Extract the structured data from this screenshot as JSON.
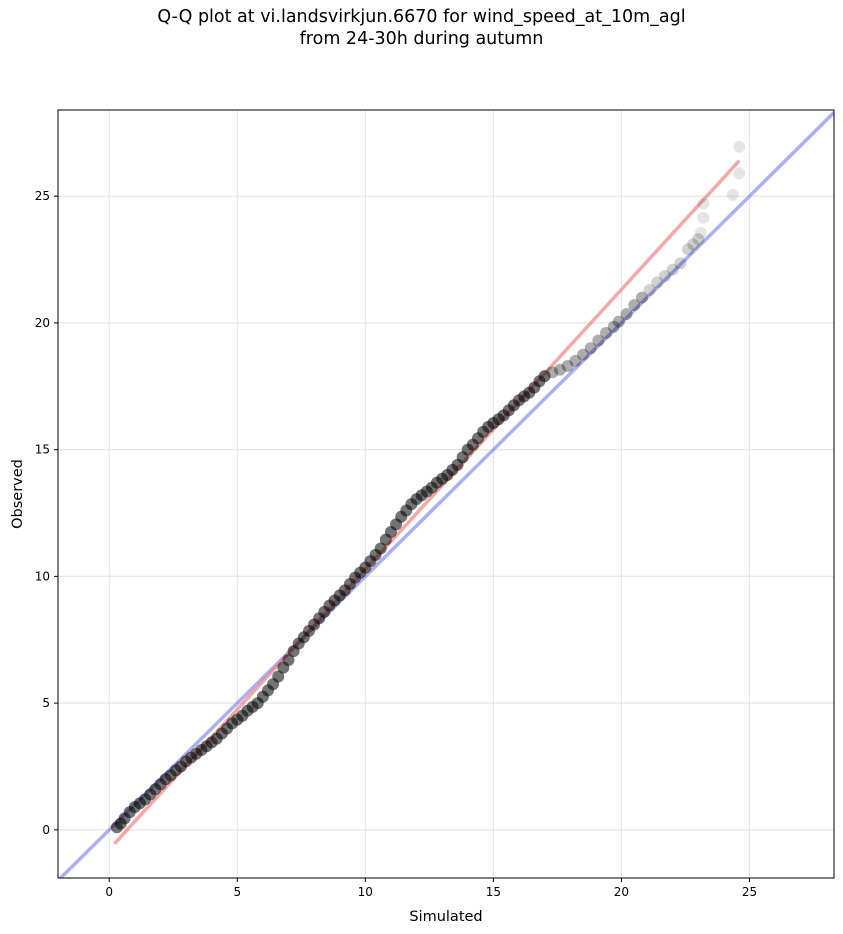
{
  "chart_data": {
    "type": "scatter",
    "title_lines": [
      "Q-Q plot at vi.landsvirkjun.6670 for wind_speed_at_10m_agl",
      "from 24-30h during autumn"
    ],
    "xlabel": "Simulated",
    "ylabel": "Observed",
    "xlim": [
      -2.0,
      28.3
    ],
    "ylim": [
      -1.9,
      28.4
    ],
    "xticks": [
      0,
      5,
      10,
      15,
      20,
      25
    ],
    "yticks": [
      0,
      5,
      10,
      15,
      20,
      25
    ],
    "grid": true,
    "colors": {
      "points": "#000000",
      "identity_line": "#6670e6",
      "fit_line": "#ee6e6e",
      "grid": "#e6e6e6"
    },
    "identity_line": {
      "name": "1:1 line",
      "from": [
        -2.0,
        -2.0
      ],
      "to": [
        28.3,
        28.3
      ]
    },
    "fit_line": {
      "from": [
        0.2,
        -0.55
      ],
      "to": [
        24.6,
        26.4
      ]
    },
    "series": [
      {
        "name": "quantiles",
        "points": [
          [
            0.3,
            0.1
          ],
          [
            0.45,
            0.25
          ],
          [
            0.6,
            0.45
          ],
          [
            0.8,
            0.7
          ],
          [
            1.0,
            0.9
          ],
          [
            1.2,
            1.05
          ],
          [
            1.4,
            1.2
          ],
          [
            1.6,
            1.4
          ],
          [
            1.8,
            1.6
          ],
          [
            2.0,
            1.8
          ],
          [
            2.2,
            2.0
          ],
          [
            2.4,
            2.15
          ],
          [
            2.6,
            2.35
          ],
          [
            2.8,
            2.5
          ],
          [
            3.0,
            2.7
          ],
          [
            3.2,
            2.85
          ],
          [
            3.4,
            3.0
          ],
          [
            3.6,
            3.15
          ],
          [
            3.8,
            3.3
          ],
          [
            4.0,
            3.45
          ],
          [
            4.2,
            3.6
          ],
          [
            4.4,
            3.8
          ],
          [
            4.6,
            4.0
          ],
          [
            4.8,
            4.2
          ],
          [
            5.0,
            4.35
          ],
          [
            5.2,
            4.5
          ],
          [
            5.4,
            4.7
          ],
          [
            5.6,
            4.85
          ],
          [
            5.8,
            5.0
          ],
          [
            6.0,
            5.25
          ],
          [
            6.2,
            5.5
          ],
          [
            6.4,
            5.75
          ],
          [
            6.6,
            6.05
          ],
          [
            6.8,
            6.4
          ],
          [
            7.0,
            6.7
          ],
          [
            7.2,
            7.05
          ],
          [
            7.4,
            7.35
          ],
          [
            7.6,
            7.6
          ],
          [
            7.8,
            7.85
          ],
          [
            8.0,
            8.1
          ],
          [
            8.2,
            8.35
          ],
          [
            8.4,
            8.6
          ],
          [
            8.6,
            8.85
          ],
          [
            8.8,
            9.05
          ],
          [
            9.0,
            9.25
          ],
          [
            9.2,
            9.45
          ],
          [
            9.4,
            9.7
          ],
          [
            9.6,
            9.95
          ],
          [
            9.8,
            10.15
          ],
          [
            10.0,
            10.35
          ],
          [
            10.2,
            10.6
          ],
          [
            10.4,
            10.85
          ],
          [
            10.6,
            11.1
          ],
          [
            10.8,
            11.45
          ],
          [
            11.0,
            11.75
          ],
          [
            11.2,
            12.05
          ],
          [
            11.4,
            12.35
          ],
          [
            11.6,
            12.6
          ],
          [
            11.8,
            12.85
          ],
          [
            12.0,
            13.05
          ],
          [
            12.2,
            13.2
          ],
          [
            12.4,
            13.35
          ],
          [
            12.6,
            13.5
          ],
          [
            12.8,
            13.7
          ],
          [
            13.0,
            13.85
          ],
          [
            13.2,
            14.0
          ],
          [
            13.4,
            14.2
          ],
          [
            13.6,
            14.4
          ],
          [
            13.8,
            14.7
          ],
          [
            14.0,
            15.0
          ],
          [
            14.2,
            15.2
          ],
          [
            14.4,
            15.45
          ],
          [
            14.6,
            15.7
          ],
          [
            14.8,
            15.9
          ],
          [
            15.0,
            16.05
          ],
          [
            15.2,
            16.2
          ],
          [
            15.4,
            16.35
          ],
          [
            15.6,
            16.55
          ],
          [
            15.8,
            16.75
          ],
          [
            16.0,
            16.95
          ],
          [
            16.2,
            17.1
          ],
          [
            16.4,
            17.25
          ],
          [
            16.6,
            17.45
          ],
          [
            16.8,
            17.7
          ],
          [
            17.0,
            17.9
          ],
          [
            17.3,
            18.05
          ],
          [
            17.6,
            18.15
          ],
          [
            17.9,
            18.3
          ],
          [
            18.2,
            18.5
          ],
          [
            18.5,
            18.75
          ],
          [
            18.8,
            19.0
          ],
          [
            19.1,
            19.3
          ],
          [
            19.4,
            19.6
          ],
          [
            19.7,
            19.85
          ],
          [
            19.9,
            20.05
          ],
          [
            20.2,
            20.35
          ],
          [
            20.5,
            20.7
          ],
          [
            20.8,
            21.0
          ],
          [
            21.1,
            21.3
          ],
          [
            21.4,
            21.6
          ],
          [
            21.7,
            21.85
          ],
          [
            22.0,
            22.1
          ],
          [
            22.3,
            22.35
          ],
          [
            22.6,
            22.9
          ],
          [
            22.8,
            23.1
          ],
          [
            23.0,
            23.3
          ],
          [
            23.1,
            23.55
          ],
          [
            23.2,
            24.15
          ],
          [
            23.2,
            24.7
          ],
          [
            24.35,
            25.05
          ],
          [
            24.6,
            25.9
          ],
          [
            24.6,
            26.95
          ]
        ]
      }
    ]
  }
}
